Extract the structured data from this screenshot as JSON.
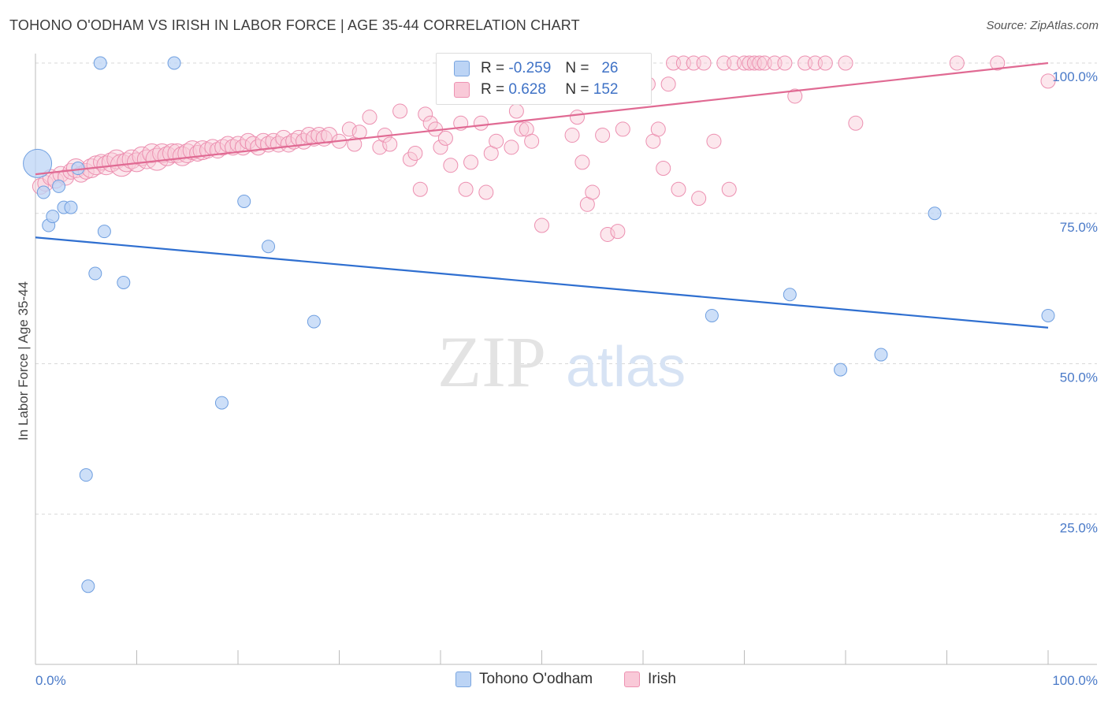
{
  "title": "TOHONO O'ODHAM VS IRISH IN LABOR FORCE | AGE 35-44 CORRELATION CHART",
  "source": "Source: ZipAtlas.com",
  "watermark": {
    "zip": "ZIP",
    "atlas": "atlas"
  },
  "legend": {
    "rows": [
      {
        "r_label": "R =",
        "r_value": "-0.259",
        "n_label": "N =",
        "n_value": "26"
      },
      {
        "r_label": "R =",
        "r_value": "0.628",
        "n_label": "N =",
        "n_value": "152"
      }
    ]
  },
  "bottom_legend": {
    "series1": "Tohono O'odham",
    "series2": "Irish"
  },
  "colors": {
    "blue_fill": "#bcd4f5",
    "blue_stroke": "#6f9fe0",
    "blue_line": "#2f6fd0",
    "pink_fill": "#f9c9d8",
    "pink_stroke": "#ec8fb0",
    "pink_line": "#e06a93",
    "tick_text": "#4a7ac8",
    "grid": "#d9d9d9"
  },
  "chart_data": {
    "type": "scatter",
    "xlabel": "",
    "ylabel": "In Labor Force | Age 35-44",
    "xlim": [
      0,
      100
    ],
    "ylim": [
      0,
      100
    ],
    "x_ticks": [
      "0.0%",
      "100.0%"
    ],
    "y_ticks": [
      "25.0%",
      "50.0%",
      "75.0%",
      "100.0%"
    ],
    "y_tick_values": [
      25,
      50,
      75,
      100
    ],
    "series": [
      {
        "name": "Tohono O'odham",
        "color": "#6f9fe0",
        "points": [
          [
            0.2,
            83.3,
            18
          ],
          [
            0.8,
            78.5,
            8
          ],
          [
            1.3,
            73,
            8
          ],
          [
            1.7,
            74.5,
            8
          ],
          [
            2.3,
            79.5,
            8
          ],
          [
            2.8,
            76,
            8
          ],
          [
            3.5,
            76,
            8
          ],
          [
            4.2,
            82.5,
            8
          ],
          [
            5.0,
            31.5,
            8
          ],
          [
            5.2,
            13,
            8
          ],
          [
            5.9,
            65,
            8
          ],
          [
            6.4,
            100,
            8
          ],
          [
            6.8,
            72,
            8
          ],
          [
            8.7,
            63.5,
            8
          ],
          [
            13.7,
            100,
            8
          ],
          [
            18.4,
            43.5,
            8
          ],
          [
            20.6,
            77,
            8
          ],
          [
            23.0,
            69.5,
            8
          ],
          [
            27.5,
            57,
            8
          ],
          [
            66.8,
            58,
            8
          ],
          [
            74.5,
            61.5,
            8
          ],
          [
            79.5,
            49,
            8
          ],
          [
            83.5,
            51.5,
            8
          ],
          [
            88.8,
            75,
            8
          ],
          [
            100.0,
            58,
            8
          ]
        ],
        "trend": [
          [
            0,
            71
          ],
          [
            100,
            56
          ]
        ]
      },
      {
        "name": "Irish",
        "color": "#ec8fb0",
        "points": [
          [
            0.5,
            79.5,
            10
          ],
          [
            1.0,
            80,
            10
          ],
          [
            1.5,
            81,
            10
          ],
          [
            2.0,
            80.5,
            10
          ],
          [
            2.5,
            81.5,
            10
          ],
          [
            3.0,
            81,
            10
          ],
          [
            3.5,
            82,
            10
          ],
          [
            4.0,
            82.5,
            12
          ],
          [
            4.5,
            81.5,
            10
          ],
          [
            5.0,
            82,
            10
          ],
          [
            5.5,
            82.5,
            12
          ],
          [
            6.0,
            83,
            12
          ],
          [
            6.5,
            83.5,
            10
          ],
          [
            7.0,
            83,
            12
          ],
          [
            7.5,
            83.5,
            12
          ],
          [
            8.0,
            84,
            12
          ],
          [
            8.5,
            83,
            14
          ],
          [
            9.0,
            83.5,
            12
          ],
          [
            9.5,
            84,
            12
          ],
          [
            10.0,
            83.5,
            12
          ],
          [
            10.5,
            84.5,
            12
          ],
          [
            11.0,
            84,
            12
          ],
          [
            11.5,
            85,
            12
          ],
          [
            12.0,
            84,
            14
          ],
          [
            12.5,
            85,
            12
          ],
          [
            13.0,
            84.5,
            12
          ],
          [
            13.5,
            85,
            12
          ],
          [
            14.0,
            85,
            12
          ],
          [
            14.5,
            84.5,
            12
          ],
          [
            15.0,
            85,
            12
          ],
          [
            15.5,
            85.5,
            12
          ],
          [
            16.0,
            85,
            10
          ],
          [
            16.5,
            85.5,
            12
          ],
          [
            17.0,
            85.5,
            10
          ],
          [
            17.5,
            86,
            10
          ],
          [
            18.0,
            85.5,
            10
          ],
          [
            18.5,
            86,
            10
          ],
          [
            19.0,
            86.5,
            10
          ],
          [
            19.5,
            86,
            10
          ],
          [
            20.0,
            86.5,
            10
          ],
          [
            20.5,
            86,
            10
          ],
          [
            21.0,
            87,
            10
          ],
          [
            21.5,
            86.5,
            10
          ],
          [
            22.0,
            86,
            10
          ],
          [
            22.5,
            87,
            10
          ],
          [
            23.0,
            86.5,
            10
          ],
          [
            23.5,
            87,
            10
          ],
          [
            24.0,
            86.5,
            10
          ],
          [
            24.5,
            87.5,
            10
          ],
          [
            25.0,
            86.5,
            10
          ],
          [
            25.5,
            87,
            10
          ],
          [
            26.0,
            87.5,
            10
          ],
          [
            26.5,
            87,
            10
          ],
          [
            27.0,
            88,
            10
          ],
          [
            27.5,
            87.5,
            10
          ],
          [
            28.0,
            88,
            10
          ],
          [
            28.5,
            87.5,
            10
          ],
          [
            29.0,
            88,
            10
          ],
          [
            30.0,
            87,
            9
          ],
          [
            31.0,
            89,
            9
          ],
          [
            31.5,
            86.5,
            9
          ],
          [
            32.0,
            88.5,
            9
          ],
          [
            33.0,
            91,
            9
          ],
          [
            34.0,
            86,
            9
          ],
          [
            34.5,
            88,
            9
          ],
          [
            35.0,
            86.5,
            9
          ],
          [
            36.0,
            92,
            9
          ],
          [
            37.0,
            84,
            9
          ],
          [
            37.5,
            85,
            9
          ],
          [
            38.0,
            79,
            9
          ],
          [
            38.5,
            91.5,
            9
          ],
          [
            39.0,
            90,
            9
          ],
          [
            39.5,
            89,
            9
          ],
          [
            40.0,
            86,
            9
          ],
          [
            40.5,
            87.5,
            9
          ],
          [
            41.0,
            83,
            9
          ],
          [
            42.0,
            90,
            9
          ],
          [
            42.5,
            79,
            9
          ],
          [
            43.0,
            83.5,
            9
          ],
          [
            44.0,
            90,
            9
          ],
          [
            44.5,
            78.5,
            9
          ],
          [
            45.0,
            85,
            9
          ],
          [
            45.5,
            87,
            9
          ],
          [
            46.0,
            94.5,
            9
          ],
          [
            47.0,
            86,
            9
          ],
          [
            47.5,
            92,
            9
          ],
          [
            48.0,
            89,
            9
          ],
          [
            48.5,
            89,
            9
          ],
          [
            49.0,
            87,
            9
          ],
          [
            50.0,
            73,
            9
          ],
          [
            50.5,
            96.5,
            9
          ],
          [
            51.0,
            99,
            9
          ],
          [
            52.0,
            100,
            9
          ],
          [
            53.0,
            88,
            9
          ],
          [
            53.5,
            91,
            9
          ],
          [
            54.0,
            83.5,
            9
          ],
          [
            54.5,
            76.5,
            9
          ],
          [
            55.0,
            78.5,
            9
          ],
          [
            55.5,
            100,
            9
          ],
          [
            56.0,
            88,
            9
          ],
          [
            56.5,
            71.5,
            9
          ],
          [
            57.0,
            100,
            9
          ],
          [
            57.5,
            72,
            9
          ],
          [
            58.0,
            89,
            9
          ],
          [
            59.0,
            100,
            9
          ],
          [
            60.0,
            100,
            9
          ],
          [
            60.5,
            96.5,
            9
          ],
          [
            61.0,
            87,
            9
          ],
          [
            61.5,
            89,
            9
          ],
          [
            62.0,
            82.5,
            9
          ],
          [
            62.5,
            96.5,
            9
          ],
          [
            63.0,
            100,
            9
          ],
          [
            63.5,
            79,
            9
          ],
          [
            64.0,
            100,
            9
          ],
          [
            65.0,
            100,
            9
          ],
          [
            65.5,
            77.5,
            9
          ],
          [
            66.0,
            100,
            9
          ],
          [
            67.0,
            87,
            9
          ],
          [
            68.0,
            100,
            9
          ],
          [
            68.5,
            79,
            9
          ],
          [
            69.0,
            100,
            9
          ],
          [
            70.0,
            100,
            9
          ],
          [
            70.5,
            100,
            9
          ],
          [
            71.0,
            100,
            9
          ],
          [
            71.5,
            100,
            9
          ],
          [
            72.0,
            100,
            9
          ],
          [
            73.0,
            100,
            9
          ],
          [
            74.0,
            100,
            9
          ],
          [
            75.0,
            94.5,
            9
          ],
          [
            76.0,
            100,
            9
          ],
          [
            77.0,
            100,
            9
          ],
          [
            78.0,
            100,
            9
          ],
          [
            80.0,
            100,
            9
          ],
          [
            81.0,
            90,
            9
          ],
          [
            91.0,
            100,
            9
          ],
          [
            95.0,
            100,
            9
          ],
          [
            100.0,
            97,
            9
          ]
        ],
        "trend": [
          [
            0,
            81.5
          ],
          [
            100,
            100
          ]
        ]
      }
    ]
  }
}
